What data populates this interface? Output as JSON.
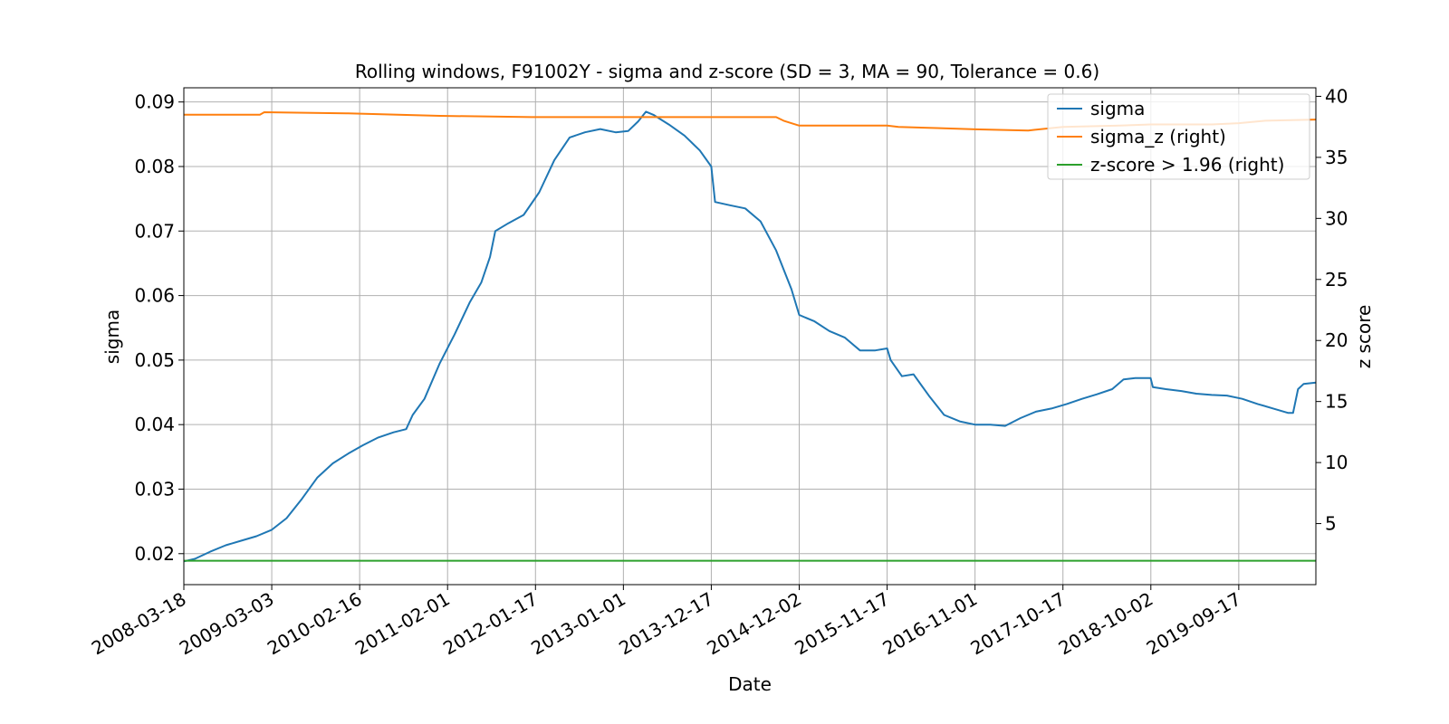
{
  "chart_data": {
    "type": "line",
    "title": "Rolling windows, F91002Y - sigma and z-score (SD = 3, MA = 90, Tolerance  = 0.6)",
    "xlabel": "Date",
    "ylabel": "sigma",
    "ylabel_right": "z score",
    "x_ticks": [
      "2008-03-18",
      "2009-03-03",
      "2010-02-16",
      "2011-02-01",
      "2012-01-17",
      "2013-01-01",
      "2013-12-17",
      "2014-12-02",
      "2015-11-17",
      "2016-11-01",
      "2017-10-17",
      "2018-10-02",
      "2019-09-17"
    ],
    "xlim": [
      "2008-03-18",
      "2020-07-20"
    ],
    "ylim": [
      0.0152,
      0.0922
    ],
    "ylim_right": [
      0,
      40.7
    ],
    "y_ticks": [
      0.02,
      0.03,
      0.04,
      0.05,
      0.06,
      0.07,
      0.08,
      0.09
    ],
    "y_tick_labels": [
      "0.02",
      "0.03",
      "0.04",
      "0.05",
      "0.06",
      "0.07",
      "0.08",
      "0.09"
    ],
    "y_ticks_right": [
      5,
      10,
      15,
      20,
      25,
      30,
      35,
      40
    ],
    "grid": true,
    "legend_position": "top-right",
    "series": [
      {
        "name": "sigma",
        "axis": "left",
        "color": "#1f77b4",
        "points": [
          [
            "2008-03-18",
            0.0188
          ],
          [
            "2008-05-01",
            0.0192
          ],
          [
            "2008-07-01",
            0.0203
          ],
          [
            "2008-09-01",
            0.0213
          ],
          [
            "2008-11-01",
            0.022
          ],
          [
            "2009-01-01",
            0.0227
          ],
          [
            "2009-03-03",
            0.0237
          ],
          [
            "2009-05-01",
            0.0255
          ],
          [
            "2009-07-01",
            0.0285
          ],
          [
            "2009-09-01",
            0.0318
          ],
          [
            "2009-11-01",
            0.034
          ],
          [
            "2010-01-01",
            0.0355
          ],
          [
            "2010-03-01",
            0.0368
          ],
          [
            "2010-05-01",
            0.038
          ],
          [
            "2010-07-01",
            0.0388
          ],
          [
            "2010-08-20",
            0.0393
          ],
          [
            "2010-09-15",
            0.0415
          ],
          [
            "2010-11-01",
            0.044
          ],
          [
            "2011-01-01",
            0.0495
          ],
          [
            "2011-03-01",
            0.054
          ],
          [
            "2011-05-01",
            0.059
          ],
          [
            "2011-06-15",
            0.062
          ],
          [
            "2011-07-20",
            0.066
          ],
          [
            "2011-08-10",
            0.07
          ],
          [
            "2011-10-01",
            0.0712
          ],
          [
            "2011-12-01",
            0.0725
          ],
          [
            "2012-02-01",
            0.076
          ],
          [
            "2012-04-01",
            0.081
          ],
          [
            "2012-06-01",
            0.0845
          ],
          [
            "2012-08-01",
            0.0853
          ],
          [
            "2012-10-01",
            0.0858
          ],
          [
            "2012-12-01",
            0.0853
          ],
          [
            "2013-01-20",
            0.0855
          ],
          [
            "2013-03-01",
            0.087
          ],
          [
            "2013-04-01",
            0.0885
          ],
          [
            "2013-05-01",
            0.088
          ],
          [
            "2013-07-01",
            0.0865
          ],
          [
            "2013-09-01",
            0.0848
          ],
          [
            "2013-11-01",
            0.0825
          ],
          [
            "2013-12-17",
            0.08
          ],
          [
            "2014-01-01",
            0.0745
          ],
          [
            "2014-03-01",
            0.074
          ],
          [
            "2014-05-01",
            0.0735
          ],
          [
            "2014-07-01",
            0.0715
          ],
          [
            "2014-09-01",
            0.067
          ],
          [
            "2014-11-01",
            0.061
          ],
          [
            "2014-12-02",
            0.057
          ],
          [
            "2015-02-01",
            0.056
          ],
          [
            "2015-04-01",
            0.0545
          ],
          [
            "2015-06-01",
            0.0535
          ],
          [
            "2015-08-01",
            0.0515
          ],
          [
            "2015-10-01",
            0.0515
          ],
          [
            "2015-11-17",
            0.0518
          ],
          [
            "2015-12-01",
            0.05
          ],
          [
            "2016-01-15",
            0.0475
          ],
          [
            "2016-03-01",
            0.0478
          ],
          [
            "2016-05-01",
            0.0445
          ],
          [
            "2016-07-01",
            0.0415
          ],
          [
            "2016-09-01",
            0.0405
          ],
          [
            "2016-11-01",
            0.04
          ],
          [
            "2017-01-01",
            0.04
          ],
          [
            "2017-03-01",
            0.0398
          ],
          [
            "2017-05-01",
            0.041
          ],
          [
            "2017-07-01",
            0.042
          ],
          [
            "2017-09-01",
            0.0425
          ],
          [
            "2017-11-01",
            0.0432
          ],
          [
            "2018-01-01",
            0.044
          ],
          [
            "2018-03-01",
            0.0447
          ],
          [
            "2018-05-01",
            0.0455
          ],
          [
            "2018-06-15",
            0.047
          ],
          [
            "2018-08-01",
            0.0472
          ],
          [
            "2018-10-01",
            0.0472
          ],
          [
            "2018-10-10",
            0.0458
          ],
          [
            "2018-12-01",
            0.0455
          ],
          [
            "2019-02-01",
            0.0452
          ],
          [
            "2019-04-01",
            0.0448
          ],
          [
            "2019-06-01",
            0.0446
          ],
          [
            "2019-08-01",
            0.0445
          ],
          [
            "2019-10-01",
            0.044
          ],
          [
            "2019-12-01",
            0.0432
          ],
          [
            "2020-02-01",
            0.0425
          ],
          [
            "2020-04-01",
            0.0418
          ],
          [
            "2020-04-20",
            0.0418
          ],
          [
            "2020-05-10",
            0.0455
          ],
          [
            "2020-06-01",
            0.0463
          ],
          [
            "2020-07-20",
            0.0465
          ]
        ]
      },
      {
        "name": "sigma_z (right)",
        "axis": "right",
        "color": "#ff7f0e",
        "points": [
          [
            "2008-03-18",
            38.5
          ],
          [
            "2009-01-15",
            38.5
          ],
          [
            "2009-02-01",
            38.7
          ],
          [
            "2010-01-01",
            38.6
          ],
          [
            "2011-01-01",
            38.4
          ],
          [
            "2012-01-01",
            38.3
          ],
          [
            "2013-01-01",
            38.3
          ],
          [
            "2014-01-01",
            38.3
          ],
          [
            "2014-09-01",
            38.3
          ],
          [
            "2014-10-01",
            38.0
          ],
          [
            "2014-12-02",
            37.6
          ],
          [
            "2015-06-01",
            37.6
          ],
          [
            "2015-11-17",
            37.6
          ],
          [
            "2016-01-01",
            37.5
          ],
          [
            "2016-06-01",
            37.4
          ],
          [
            "2016-11-01",
            37.3
          ],
          [
            "2017-06-01",
            37.2
          ],
          [
            "2017-10-17",
            37.5
          ],
          [
            "2018-06-01",
            37.6
          ],
          [
            "2018-10-02",
            37.7
          ],
          [
            "2019-06-01",
            37.7
          ],
          [
            "2019-09-17",
            37.8
          ],
          [
            "2020-01-01",
            38.0
          ],
          [
            "2020-07-20",
            38.1
          ]
        ]
      },
      {
        "name": "z-score > 1.96 (right)",
        "axis": "right",
        "color": "#2ca02c",
        "points": [
          [
            "2008-03-18",
            1.96
          ],
          [
            "2020-07-20",
            1.96
          ]
        ]
      }
    ]
  }
}
